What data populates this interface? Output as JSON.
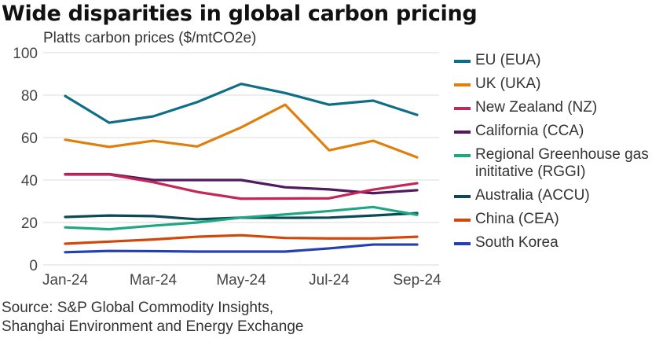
{
  "chart_data": {
    "type": "line",
    "title": "Wide disparities in global carbon pricing",
    "subtitle": "Platts carbon prices ($/mtCO2e)",
    "xlabel": "",
    "ylabel": "Platts carbon prices ($/mtCO2e)",
    "x": [
      "Jan-24",
      "Feb-24",
      "Mar-24",
      "Apr-24",
      "May-24",
      "Jun-24",
      "Jul-24",
      "Aug-24",
      "Sep-24"
    ],
    "x_tick_labels": [
      "Jan-24",
      "Mar-24",
      "May-24",
      "Jul-24",
      "Sep-24"
    ],
    "y_ticks": [
      0,
      20,
      40,
      60,
      80,
      100
    ],
    "ylim": [
      0,
      100
    ],
    "grid": "horizontal",
    "legend_position": "right",
    "series": [
      {
        "name": "EU (EUA)",
        "color": "#0f6e87",
        "values": [
          79.6,
          67,
          70,
          76.7,
          85.3,
          81,
          75.5,
          77.4,
          70.7
        ]
      },
      {
        "name": "UK (UKA)",
        "color": "#e07f0c",
        "values": [
          59,
          55.6,
          58.5,
          55.8,
          64.8,
          75.5,
          54,
          58.5,
          50.7
        ]
      },
      {
        "name": "New Zealand (NZ)",
        "color": "#c52658",
        "values": [
          42.6,
          42.6,
          39,
          34.4,
          31.2,
          31.3,
          31.4,
          35.5,
          38.5
        ]
      },
      {
        "name": "California (CCA)",
        "color": "#501a5c",
        "values": [
          42.8,
          42.8,
          40,
          40,
          40,
          36.6,
          35.6,
          33.8,
          35.2
        ]
      },
      {
        "name": "Regional Greenhouse gas inititative (RGGI)",
        "color": "#1fa77f",
        "values": [
          17.7,
          16.8,
          18.5,
          20,
          22.3,
          23.8,
          25.4,
          27.3,
          23.6
        ]
      },
      {
        "name": "Australia (ACCU)",
        "color": "#0b4a55",
        "values": [
          22.6,
          23.3,
          23,
          21.5,
          22.3,
          22.2,
          22.3,
          23.3,
          24.4
        ]
      },
      {
        "name": "China (CEA)",
        "color": "#d0480c",
        "values": [
          10,
          11,
          12,
          13.3,
          14,
          12.7,
          12.5,
          12.5,
          13.3
        ]
      },
      {
        "name": "South Korea",
        "color": "#2440b0",
        "values": [
          6,
          6.6,
          6.5,
          6.3,
          6.3,
          6.3,
          7.8,
          9.6,
          9.6
        ]
      }
    ]
  },
  "legend": {
    "items": [
      {
        "label": "EU (EUA)",
        "color": "#0f6e87"
      },
      {
        "label": "UK (UKA)",
        "color": "#e07f0c"
      },
      {
        "label": "New Zealand (NZ)",
        "color": "#c52658"
      },
      {
        "label": "California (CCA)",
        "color": "#501a5c"
      },
      {
        "label": "Regional Greenhouse gas inititative (RGGI)",
        "color": "#1fa77f"
      },
      {
        "label": "Australia (ACCU)",
        "color": "#0b4a55"
      },
      {
        "label": "China (CEA)",
        "color": "#d0480c"
      },
      {
        "label": "South Korea",
        "color": "#2440b0"
      }
    ]
  },
  "source": {
    "line1": "Source: S&P Global Commodity Insights,",
    "line2": "Shanghai Environment and Energy Exchange"
  }
}
